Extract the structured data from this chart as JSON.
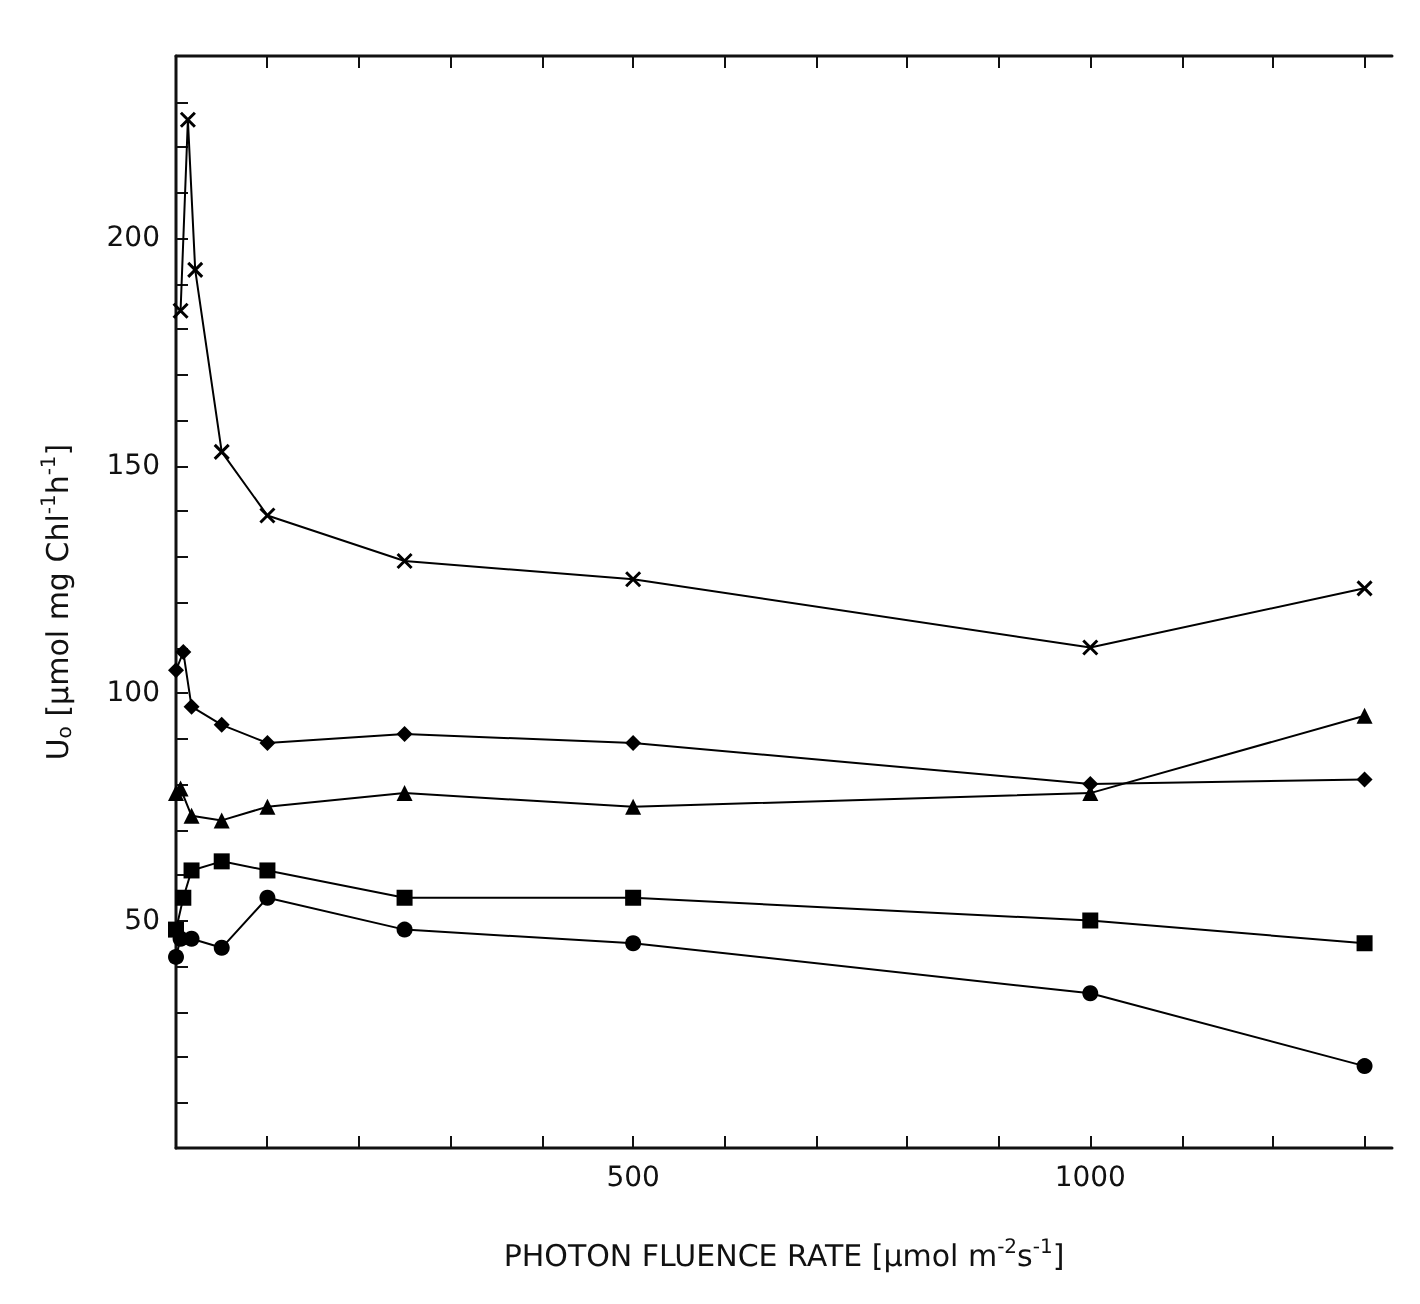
{
  "chart_data": {
    "type": "line",
    "xlabel": "PHOTON FLUENCE RATE [µmol m$^{-2}$s$^{-1}$]",
    "ylabel": "U$_{o}$ [µmol mg Chl$^{-1}$h$^{-1}$]",
    "xlim": [
      0,
      1330
    ],
    "ylim": [
      0,
      240
    ],
    "xticks": [
      {
        "value": 100,
        "label": null
      },
      {
        "value": 200,
        "label": null
      },
      {
        "value": 300,
        "label": null
      },
      {
        "value": 400,
        "label": null
      },
      500,
      {
        "value": 600,
        "label": null
      },
      {
        "value": 700,
        "label": null
      },
      {
        "value": 800,
        "label": null
      },
      {
        "value": 900,
        "label": null
      },
      1000,
      {
        "value": 1100,
        "label": null
      },
      {
        "value": 1200,
        "label": null
      },
      {
        "value": 1300,
        "label": null
      }
    ],
    "yticks": [
      {
        "value": 10,
        "label": null
      },
      {
        "value": 20,
        "label": null
      },
      {
        "value": 30,
        "label": null
      },
      {
        "value": 40,
        "label": null
      },
      50,
      {
        "value": 60,
        "label": null
      },
      {
        "value": 70,
        "label": null
      },
      {
        "value": 80,
        "label": null
      },
      {
        "value": 90,
        "label": null
      },
      100,
      {
        "value": 110,
        "label": null
      },
      {
        "value": 120,
        "label": null
      },
      {
        "value": 130,
        "label": null
      },
      {
        "value": 140,
        "label": null
      },
      150,
      {
        "value": 160,
        "label": null
      },
      {
        "value": 170,
        "label": null
      },
      {
        "value": 180,
        "label": null
      },
      {
        "value": 190,
        "label": null
      },
      200,
      {
        "value": 210,
        "label": null
      },
      {
        "value": 220,
        "label": null
      },
      {
        "value": 230,
        "label": null
      }
    ],
    "grid": false,
    "series": [
      {
        "color": "#000000",
        "marker": "cross",
        "x": [
          5,
          13,
          21,
          50,
          100,
          250,
          500,
          1000,
          1300
        ],
        "values": [
          184,
          226,
          193,
          153,
          139,
          129,
          125,
          110,
          123
        ]
      },
      {
        "color": "#000000",
        "marker": "diamond",
        "x": [
          0,
          8,
          17,
          50,
          100,
          250,
          500,
          1000,
          1300
        ],
        "values": [
          105,
          109,
          97,
          93,
          89,
          91,
          89,
          80,
          81
        ]
      },
      {
        "color": "#000000",
        "marker": "triangle",
        "x": [
          0,
          5,
          17,
          50,
          100,
          250,
          500,
          1000,
          1300
        ],
        "values": [
          78,
          79,
          73,
          72,
          75,
          78,
          75,
          78,
          95
        ]
      },
      {
        "color": "#000000",
        "marker": "square",
        "x": [
          0,
          8,
          17,
          50,
          100,
          250,
          500,
          1000,
          1300
        ],
        "values": [
          48,
          55,
          61,
          63,
          61,
          55,
          55,
          50,
          45
        ]
      },
      {
        "color": "#000000",
        "marker": "circle",
        "x": [
          0,
          5,
          17,
          50,
          100,
          250,
          500,
          1000,
          1300
        ],
        "values": [
          42,
          46,
          46,
          44,
          55,
          48,
          45,
          34,
          18
        ]
      }
    ]
  }
}
